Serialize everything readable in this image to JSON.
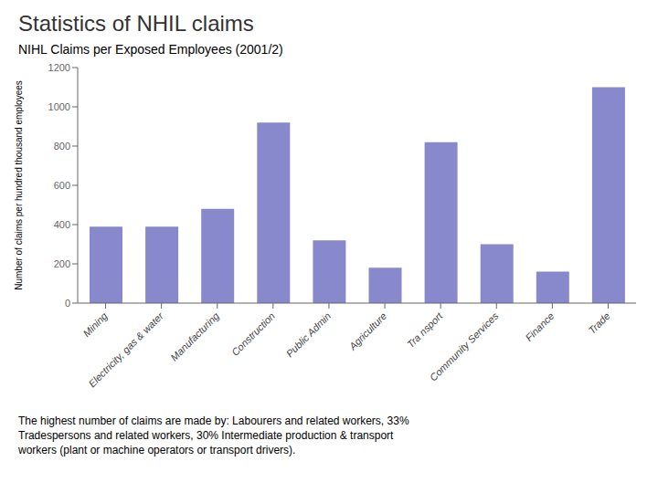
{
  "chart_data": {
    "type": "bar",
    "title": "Statistics of NHIL claims",
    "subtitle": "NIHL Claims per Exposed Employees (2001/2)",
    "ylabel": "Number of claims per hundred thousand employees",
    "categories": [
      "Mining",
      "Electricity, gas & water",
      "Manufacturing",
      "Construction",
      "Public Admin",
      "Agriculture",
      "Tra nsport",
      "Community Services",
      "Finance",
      "Trade"
    ],
    "values": [
      390,
      390,
      480,
      920,
      320,
      180,
      820,
      300,
      160,
      1100
    ],
    "color": "#8888cc",
    "ylim": [
      0,
      1200
    ],
    "yticks": [
      0,
      200,
      400,
      600,
      800,
      1000,
      1200
    ],
    "grid": false,
    "annotations": [
      "The highest number of claims are made by: Labourers and related workers, 33%\nTradespersons and related workers, 30% Intermediate production & transport\nworkers (plant or machine operators or transport drivers)."
    ]
  }
}
